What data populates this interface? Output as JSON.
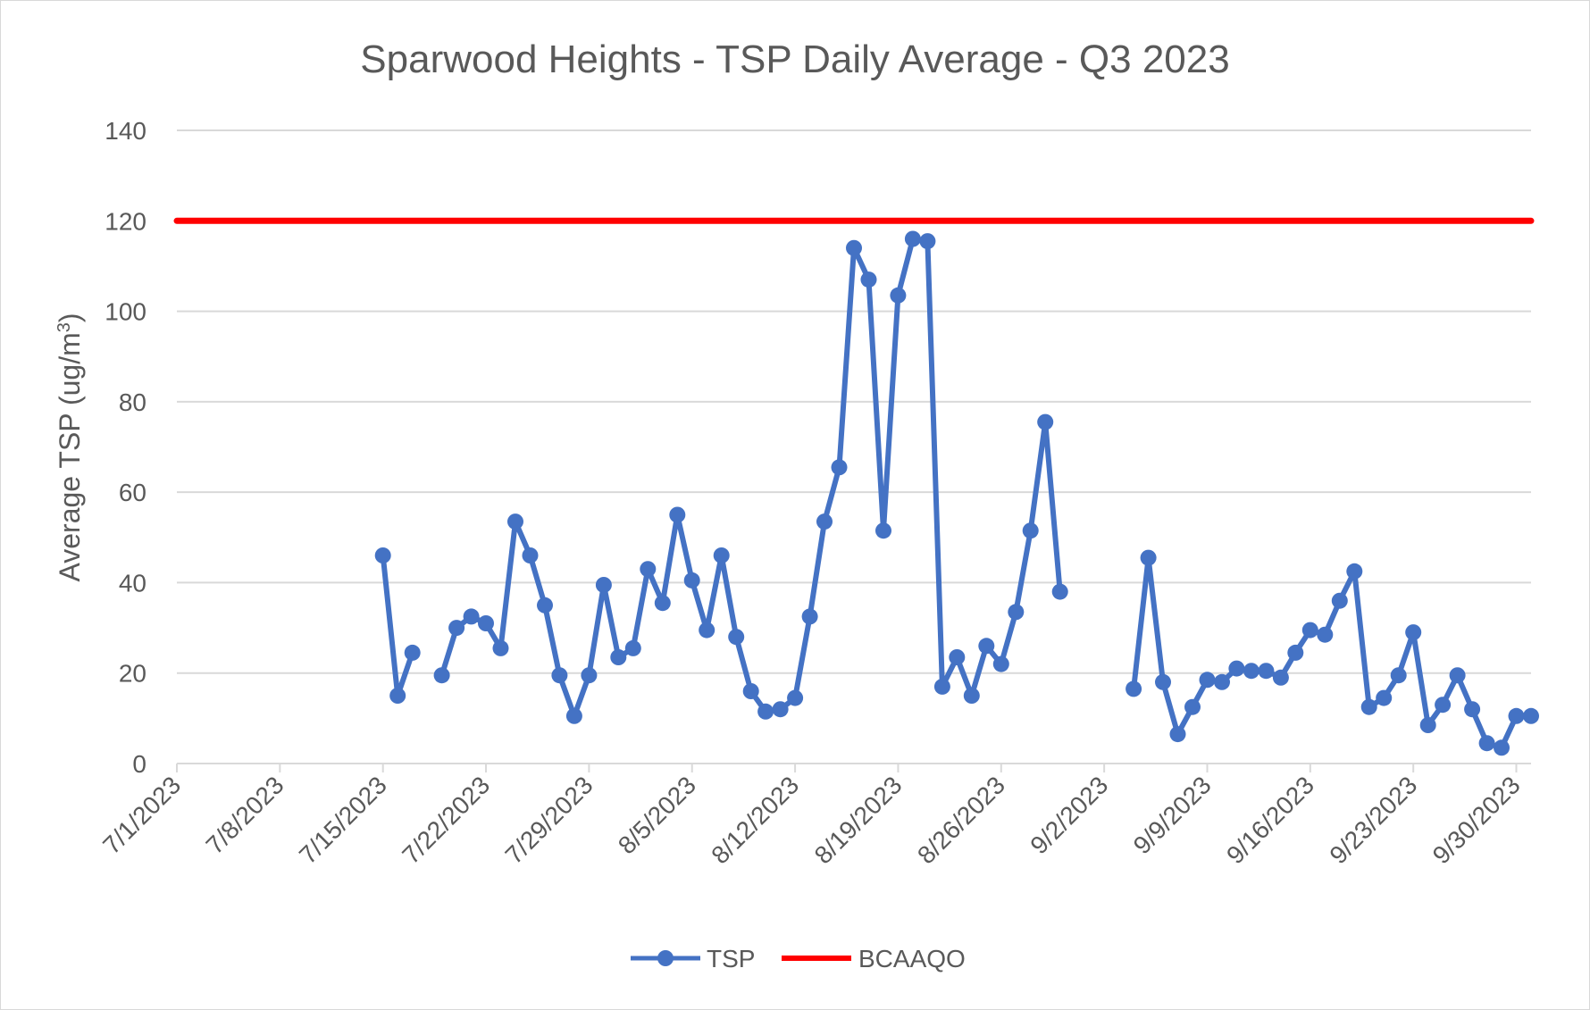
{
  "chart_data": {
    "type": "line",
    "title": "Sparwood Heights - TSP Daily Average - Q3 2023",
    "xlabel": "",
    "ylabel": "Average TSP (ug/m³)",
    "ylabel_main": "Average TSP (ug/m",
    "ylabel_sup": "3",
    "ylabel_end": ")",
    "ylim": [
      0,
      140
    ],
    "yticks": [
      0,
      20,
      40,
      60,
      80,
      100,
      120,
      140
    ],
    "xlim": [
      "2023-07-01",
      "2023-10-01"
    ],
    "xtick_labels": [
      "7/1/2023",
      "7/8/2023",
      "7/15/2023",
      "7/22/2023",
      "7/29/2023",
      "8/5/2023",
      "8/12/2023",
      "8/19/2023",
      "8/26/2023",
      "9/2/2023",
      "9/9/2023",
      "9/16/2023",
      "9/23/2023",
      "9/30/2023"
    ],
    "grid": true,
    "legend_position": "bottom",
    "series": [
      {
        "name": "TSP",
        "color": "#4472c4",
        "marker": "circle",
        "points": [
          [
            "2023-07-15",
            46
          ],
          [
            "2023-07-16",
            15
          ],
          [
            "2023-07-17",
            24.5
          ],
          [
            "2023-07-18",
            null
          ],
          [
            "2023-07-19",
            19.5
          ],
          [
            "2023-07-20",
            30
          ],
          [
            "2023-07-21",
            32.5
          ],
          [
            "2023-07-22",
            31
          ],
          [
            "2023-07-23",
            25.5
          ],
          [
            "2023-07-24",
            53.5
          ],
          [
            "2023-07-25",
            46
          ],
          [
            "2023-07-26",
            35
          ],
          [
            "2023-07-27",
            19.5
          ],
          [
            "2023-07-28",
            10.5
          ],
          [
            "2023-07-29",
            19.5
          ],
          [
            "2023-07-30",
            39.5
          ],
          [
            "2023-07-31",
            23.5
          ],
          [
            "2023-08-01",
            25.5
          ],
          [
            "2023-08-02",
            43
          ],
          [
            "2023-08-03",
            35.5
          ],
          [
            "2023-08-04",
            55
          ],
          [
            "2023-08-05",
            40.5
          ],
          [
            "2023-08-06",
            29.5
          ],
          [
            "2023-08-07",
            46
          ],
          [
            "2023-08-08",
            28
          ],
          [
            "2023-08-09",
            16
          ],
          [
            "2023-08-10",
            11.5
          ],
          [
            "2023-08-11",
            12
          ],
          [
            "2023-08-12",
            14.5
          ],
          [
            "2023-08-13",
            32.5
          ],
          [
            "2023-08-14",
            53.5
          ],
          [
            "2023-08-15",
            65.5
          ],
          [
            "2023-08-16",
            114
          ],
          [
            "2023-08-17",
            107
          ],
          [
            "2023-08-18",
            51.5
          ],
          [
            "2023-08-19",
            103.5
          ],
          [
            "2023-08-20",
            116
          ],
          [
            "2023-08-21",
            115.5
          ],
          [
            "2023-08-22",
            17
          ],
          [
            "2023-08-23",
            23.5
          ],
          [
            "2023-08-24",
            15
          ],
          [
            "2023-08-25",
            26
          ],
          [
            "2023-08-26",
            22
          ],
          [
            "2023-08-27",
            33.5
          ],
          [
            "2023-08-28",
            51.5
          ],
          [
            "2023-08-29",
            75.5
          ],
          [
            "2023-08-30",
            38
          ],
          [
            "2023-08-31",
            null
          ],
          [
            "2023-09-01",
            null
          ],
          [
            "2023-09-02",
            null
          ],
          [
            "2023-09-03",
            null
          ],
          [
            "2023-09-04",
            16.5
          ],
          [
            "2023-09-05",
            45.5
          ],
          [
            "2023-09-06",
            18
          ],
          [
            "2023-09-07",
            6.5
          ],
          [
            "2023-09-08",
            12.5
          ],
          [
            "2023-09-09",
            18.5
          ],
          [
            "2023-09-10",
            18
          ],
          [
            "2023-09-11",
            21
          ],
          [
            "2023-09-12",
            20.5
          ],
          [
            "2023-09-13",
            20.5
          ],
          [
            "2023-09-14",
            19
          ],
          [
            "2023-09-15",
            24.5
          ],
          [
            "2023-09-16",
            29.5
          ],
          [
            "2023-09-17",
            28.5
          ],
          [
            "2023-09-18",
            36
          ],
          [
            "2023-09-19",
            42.5
          ],
          [
            "2023-09-20",
            12.5
          ],
          [
            "2023-09-21",
            14.5
          ],
          [
            "2023-09-22",
            19.5
          ],
          [
            "2023-09-23",
            29
          ],
          [
            "2023-09-24",
            8.5
          ],
          [
            "2023-09-25",
            13
          ],
          [
            "2023-09-26",
            19.5
          ],
          [
            "2023-09-27",
            12
          ],
          [
            "2023-09-28",
            4.5
          ],
          [
            "2023-09-29",
            3.5
          ],
          [
            "2023-09-30",
            10.5
          ],
          [
            "2023-10-01",
            10.5
          ]
        ]
      },
      {
        "name": "BCAAQO",
        "color": "#ff0000",
        "marker": "none",
        "points": [
          [
            "2023-07-01",
            120
          ],
          [
            "2023-10-01",
            120
          ]
        ]
      }
    ]
  }
}
